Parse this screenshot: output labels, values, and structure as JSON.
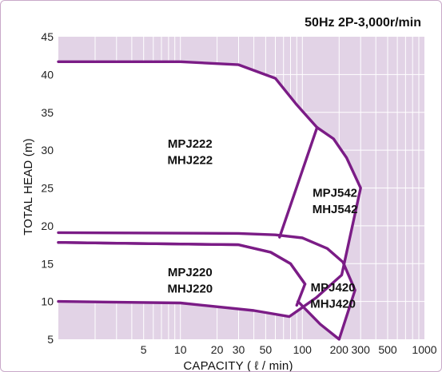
{
  "chart_data": {
    "type": "line",
    "title": "50Hz 2P-3,000r/min",
    "xlabel": "CAPACITY ( ℓ / min)",
    "ylabel": "TOTAL HEAD (m)",
    "x_scale": "log",
    "xlim": [
      1,
      1000
    ],
    "ylim": [
      5,
      45
    ],
    "x_ticks": [
      5,
      10,
      20,
      30,
      50,
      100,
      200,
      300,
      500,
      1000
    ],
    "x_tick_labels": [
      "5",
      "10",
      "20",
      "30",
      "50",
      "100",
      "200",
      "300",
      "500",
      "1000"
    ],
    "y_ticks": [
      5,
      10,
      15,
      20,
      25,
      30,
      35,
      40,
      45
    ],
    "grid": true,
    "colors": {
      "plot_background": "#e2d3e6",
      "region_fill": "#ffffff",
      "curve": "#7b1c86",
      "grid": "#ffffff"
    },
    "series": [
      {
        "points": [
          [
            1,
            41.7
          ],
          [
            10,
            41.7
          ],
          [
            30,
            41.3
          ],
          [
            60,
            39.5
          ],
          [
            90,
            36.0
          ],
          [
            132,
            33.0
          ]
        ]
      },
      {
        "points": [
          [
            132,
            33.0
          ],
          [
            180,
            31.5
          ],
          [
            230,
            29.0
          ],
          [
            300,
            25.0
          ],
          [
            210,
            13.5
          ],
          [
            130,
            10.5
          ],
          [
            78,
            8.0
          ],
          [
            40,
            8.8
          ],
          [
            10,
            9.8
          ],
          [
            1,
            10.0
          ]
        ]
      },
      {
        "points": [
          [
            1,
            19.1
          ],
          [
            30,
            19.0
          ],
          [
            60,
            18.8
          ],
          [
            100,
            18.4
          ],
          [
            160,
            17.0
          ],
          [
            215,
            15.2
          ],
          [
            270,
            11.5
          ],
          [
            200,
            5.0
          ],
          [
            140,
            7.0
          ],
          [
            92,
            10.0
          ]
        ]
      },
      {
        "points": [
          [
            1,
            17.8
          ],
          [
            30,
            17.5
          ],
          [
            55,
            16.5
          ],
          [
            80,
            15.0
          ],
          [
            105,
            12.3
          ]
        ]
      },
      {
        "points": [
          [
            65,
            18.5
          ],
          [
            132,
            33.0
          ]
        ]
      },
      {
        "points": [
          [
            1,
            17.8
          ],
          [
            30,
            17.5
          ],
          [
            55,
            16.5
          ],
          [
            80,
            15.0
          ],
          [
            105,
            12.3
          ],
          [
            90,
            9.5
          ]
        ]
      }
    ],
    "region_fills": [
      {
        "points": [
          [
            1,
            41.7
          ],
          [
            10,
            41.7
          ],
          [
            30,
            41.3
          ],
          [
            60,
            39.5
          ],
          [
            90,
            36.0
          ],
          [
            132,
            33.0
          ],
          [
            180,
            31.5
          ],
          [
            230,
            29.0
          ],
          [
            300,
            25.0
          ],
          [
            210,
            13.5
          ],
          [
            130,
            10.5
          ],
          [
            78,
            8.0
          ],
          [
            40,
            8.8
          ],
          [
            10,
            9.8
          ],
          [
            1,
            10.0
          ]
        ]
      },
      {
        "points": [
          [
            1,
            19.1
          ],
          [
            30,
            19.0
          ],
          [
            60,
            18.8
          ],
          [
            100,
            18.4
          ],
          [
            160,
            17.0
          ],
          [
            215,
            15.2
          ],
          [
            270,
            11.5
          ],
          [
            200,
            5.0
          ],
          [
            140,
            7.0
          ],
          [
            92,
            10.0
          ],
          [
            60,
            13.0
          ],
          [
            1,
            13.0
          ]
        ]
      }
    ],
    "annotations": [
      {
        "lines": [
          "MPJ222",
          "MHJ222"
        ],
        "x": 12,
        "y": 30.0
      },
      {
        "lines": [
          "MPJ542",
          "MHJ542"
        ],
        "x": 185,
        "y": 23.5
      },
      {
        "lines": [
          "MPJ220",
          "MHJ220"
        ],
        "x": 12,
        "y": 13.0
      },
      {
        "lines": [
          "MPJ420",
          "MHJ420"
        ],
        "x": 178,
        "y": 11.0
      }
    ]
  }
}
